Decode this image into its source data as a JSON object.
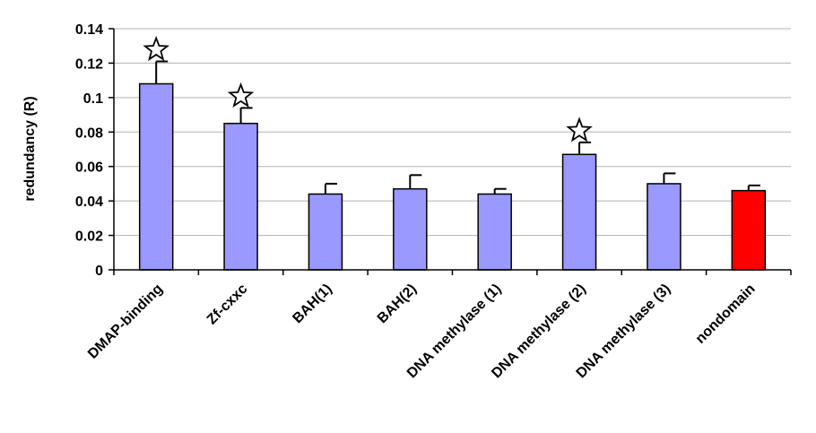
{
  "chart_data": {
    "type": "bar",
    "ylabel": "redundancy (R)",
    "xlabel": "",
    "ylim": [
      0,
      0.14
    ],
    "yticks": [
      "0",
      "0.02",
      "0.04",
      "0.06",
      "0.08",
      "0.1",
      "0.12",
      "0.14"
    ],
    "grid": "horizontal",
    "categories": [
      "DMAP-binding",
      "Zf-cxxc",
      "BAH(1)",
      "BAH(2)",
      "DNA methylase (1)",
      "DNA methylase (2)",
      "DNA methylase (3)",
      "nondomain"
    ],
    "values": [
      0.108,
      0.085,
      0.044,
      0.047,
      0.044,
      0.067,
      0.05,
      0.046
    ],
    "errors": [
      0.013,
      0.009,
      0.006,
      0.008,
      0.003,
      0.007,
      0.006,
      0.003
    ],
    "significant": [
      true,
      true,
      false,
      false,
      false,
      true,
      false,
      false
    ],
    "bar_colors": [
      "#9999ff",
      "#9999ff",
      "#9999ff",
      "#9999ff",
      "#9999ff",
      "#9999ff",
      "#9999ff",
      "#ff0000"
    ],
    "marker": "star"
  }
}
